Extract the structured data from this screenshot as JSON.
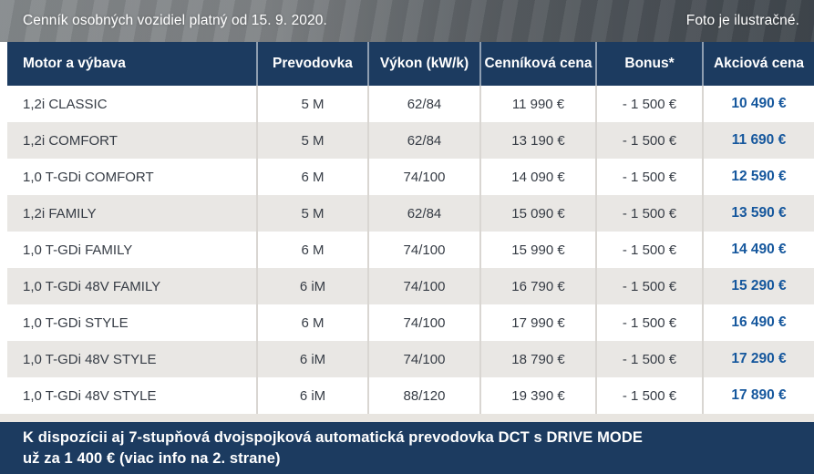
{
  "colors": {
    "header_navy": "#1c3b60",
    "banner_navy": "#1c3b60",
    "action_price_blue": "#15579d",
    "row_alt_gray": "#e9e7e4",
    "spacer_strip": "#e8e5e0",
    "body_text": "#363c45"
  },
  "top_bar": {
    "left_text": "Cenník osobných vozidiel platný od 15. 9. 2020.",
    "right_text": "Foto je ilustračné."
  },
  "table": {
    "headers": [
      "Motor a výbava",
      "Prevodovka",
      "Výkon (kW/k)",
      "Cenníková cena",
      "Bonus*",
      "Akciová cena"
    ],
    "rows": [
      [
        "1,2i CLASSIC",
        "5 M",
        "62/84",
        "11 990 €",
        "- 1 500 €",
        "10 490 €"
      ],
      [
        "1,2i COMFORT",
        "5 M",
        "62/84",
        "13 190 €",
        "- 1 500 €",
        "11 690 €"
      ],
      [
        "1,0 T-GDi COMFORT",
        "6 M",
        "74/100",
        "14 090 €",
        "- 1 500 €",
        "12 590 €"
      ],
      [
        "1,2i FAMILY",
        "5 M",
        "62/84",
        "15 090 €",
        "- 1 500 €",
        "13 590 €"
      ],
      [
        "1,0 T-GDi FAMILY",
        "6 M",
        "74/100",
        "15 990 €",
        "- 1 500 €",
        "14 490 €"
      ],
      [
        "1,0 T-GDi 48V FAMILY",
        "6 iM",
        "74/100",
        "16 790 €",
        "- 1 500 €",
        "15 290 €"
      ],
      [
        "1,0 T-GDi STYLE",
        "6 M",
        "74/100",
        "17 990 €",
        "- 1 500 €",
        "16 490 €"
      ],
      [
        "1,0 T-GDi 48V STYLE",
        "6 iM",
        "74/100",
        "18 790 €",
        "- 1 500 €",
        "17 290 €"
      ],
      [
        "1,0 T-GDi 48V STYLE",
        "6 iM",
        "88/120",
        "19 390 €",
        "- 1 500 €",
        "17 890 €"
      ]
    ]
  },
  "banner": {
    "line1": "K dispozícii aj 7-stupňová dvojspojková automatická prevodovka DCT s DRIVE MODE",
    "line2": "už za 1 400 € (viac info na 2. strane)"
  }
}
